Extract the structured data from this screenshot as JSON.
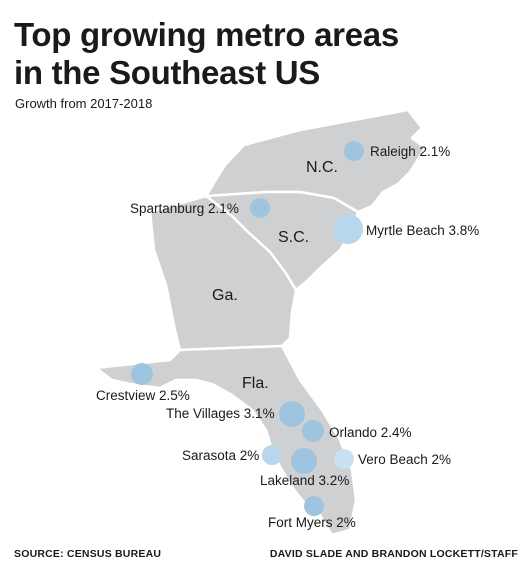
{
  "title_line1": "Top growing metro areas",
  "title_line2": "in the Southeast US",
  "subtitle": "Growth from 2017-2018",
  "states": {
    "nc": "N.C.",
    "sc": "S.C.",
    "ga": "Ga.",
    "fla": "Fla."
  },
  "cities": [
    {
      "id": "raleigh",
      "label": "Raleigh 2.1%",
      "growth": 2.1
    },
    {
      "id": "spartanburg",
      "label": "Spartanburg 2.1%",
      "growth": 2.1
    },
    {
      "id": "myrtle-beach",
      "label": "Myrtle Beach 3.8%",
      "growth": 3.8
    },
    {
      "id": "crestview",
      "label": "Crestview 2.5%",
      "growth": 2.5
    },
    {
      "id": "the-villages",
      "label": "The Villages 3.1%",
      "growth": 3.1
    },
    {
      "id": "orlando",
      "label": "Orlando 2.4%",
      "growth": 2.4
    },
    {
      "id": "sarasota",
      "label": "Sarasota 2%",
      "growth": 2.0
    },
    {
      "id": "vero-beach",
      "label": "Vero Beach 2%",
      "growth": 2.0
    },
    {
      "id": "lakeland",
      "label": "Lakeland 3.2%",
      "growth": 3.2
    },
    {
      "id": "fort-myers",
      "label": "Fort Myers 2%",
      "growth": 2.0
    }
  ],
  "source": "SOURCE: CENSUS BUREAU",
  "credit": "DAVID SLADE AND BRANDON LOCKETT/STAFF",
  "colors": {
    "land": "#cfd0d2",
    "border": "#ffffff",
    "marker": "#9fc4df",
    "marker_highlight": "#c9e0f1"
  }
}
